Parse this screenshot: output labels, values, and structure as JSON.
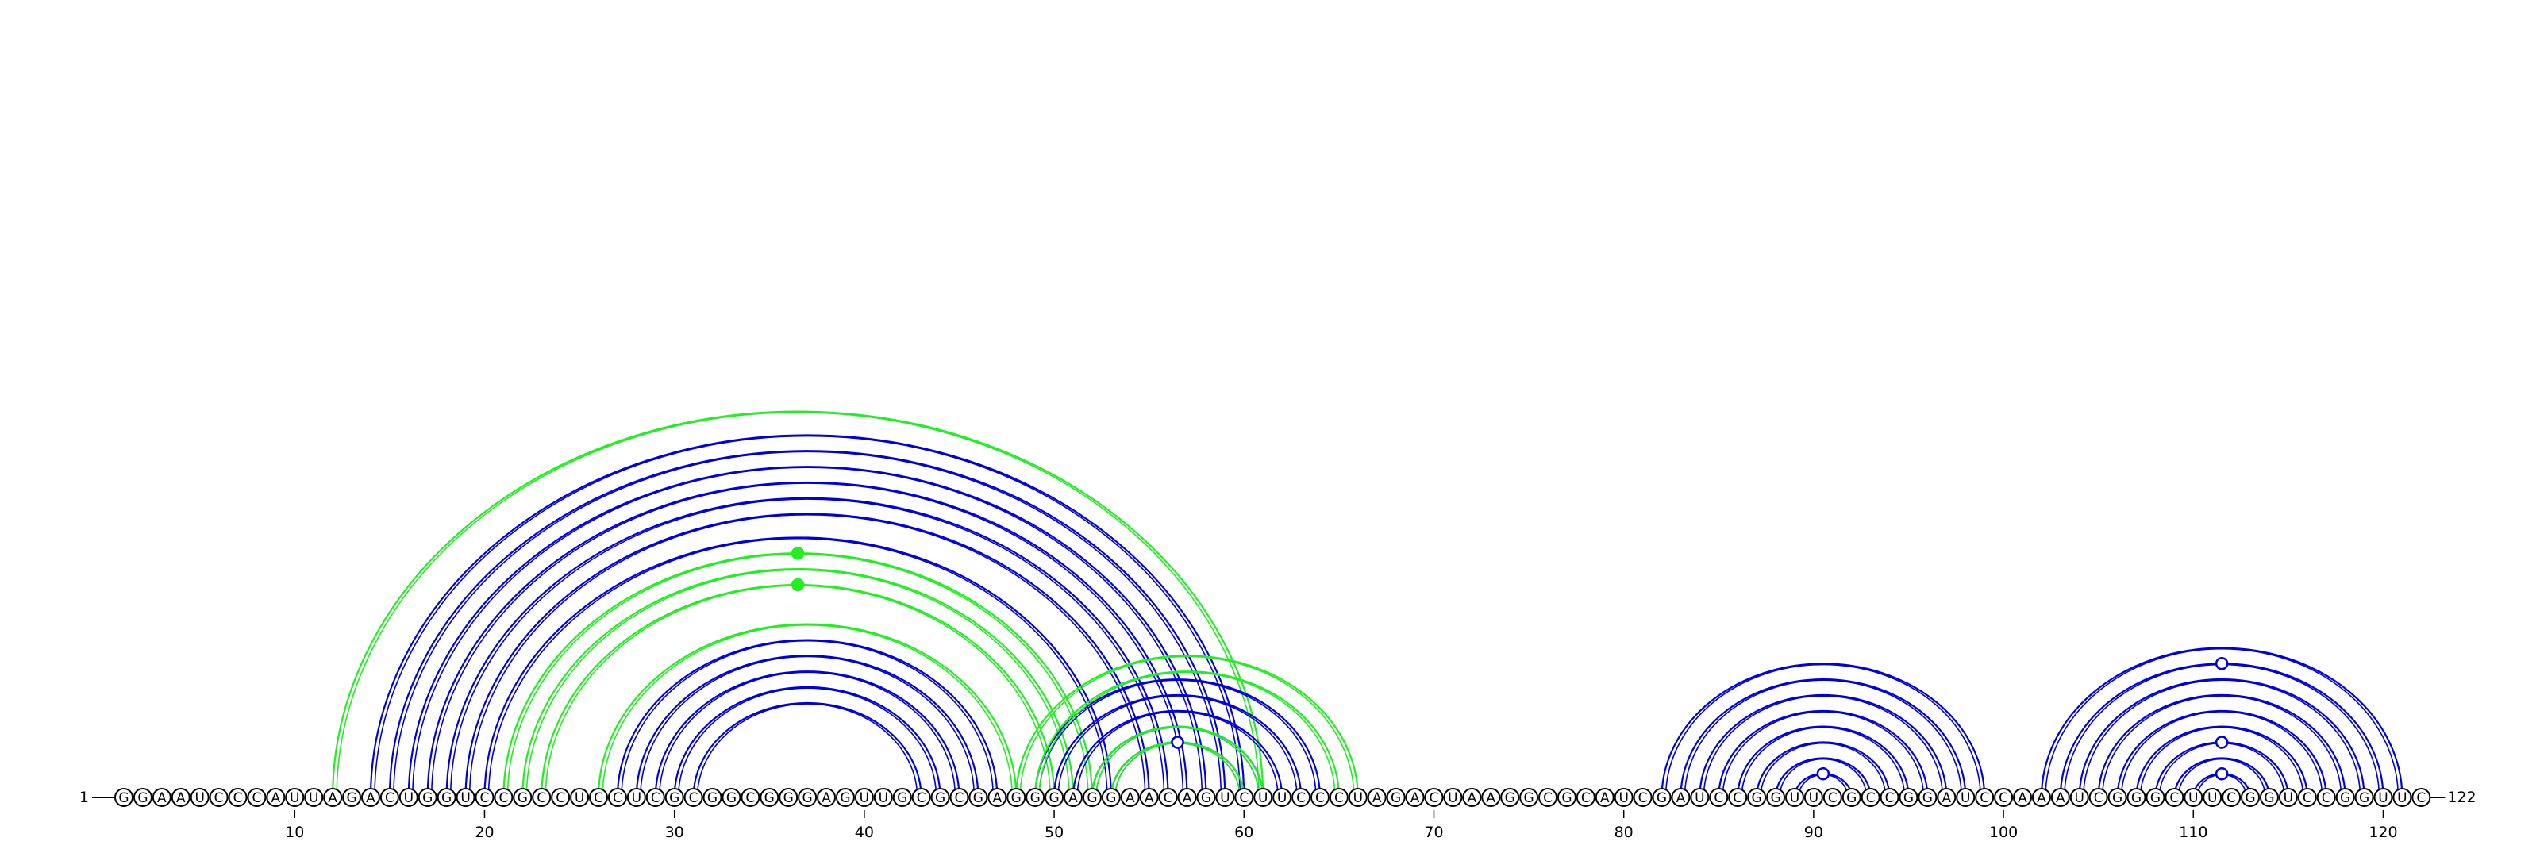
{
  "diagram": {
    "type": "rna-arc-diagram",
    "sequence": "GGAAUCCCAUUAGACUGGUCCGCCUCCUCGCGGCGGGAGUUGCGCGAGGGAGGAACAGUCUUCCCUAGACUAAGGCGCAUCGAUCCGGUUCGCCGGAUCCAAAUCGGGCUUCGGUCCGGUUC",
    "length": 122,
    "start_label": "1",
    "end_label": "122",
    "ticks": [
      10,
      20,
      30,
      40,
      50,
      60,
      70,
      80,
      90,
      100,
      110,
      120
    ],
    "colors": {
      "blue": "#0000dd",
      "green": "#22ee22",
      "nucleotide_outline": "#000000"
    },
    "arc_groups": [
      {
        "color": "blue",
        "arcs": [
          [
            14,
            60
          ],
          [
            15,
            59
          ],
          [
            16,
            58
          ],
          [
            17,
            57
          ],
          [
            18,
            56
          ],
          [
            19,
            55
          ]
        ]
      },
      {
        "color": "blue",
        "arcs": [
          [
            20,
            53
          ]
        ]
      },
      {
        "color": "green",
        "arcs": [
          [
            12,
            61
          ]
        ]
      },
      {
        "color": "green",
        "arcs": [
          [
            21,
            52
          ],
          [
            22,
            51
          ],
          [
            23,
            50
          ]
        ]
      },
      {
        "color": "blue",
        "arcs": [
          [
            27,
            47
          ],
          [
            28,
            46
          ],
          [
            29,
            45
          ],
          [
            30,
            44
          ],
          [
            31,
            43
          ]
        ]
      },
      {
        "color": "green",
        "arcs": [
          [
            26,
            48
          ]
        ]
      },
      {
        "color": "blue",
        "arcs": [
          [
            49,
            64
          ],
          [
            50,
            63
          ],
          [
            51,
            62
          ],
          [
            52,
            61
          ],
          [
            53,
            60
          ]
        ]
      },
      {
        "color": "green",
        "arcs": [
          [
            48,
            66
          ],
          [
            49,
            65
          ],
          [
            52,
            61
          ],
          [
            53,
            60
          ]
        ]
      },
      {
        "color": "blue",
        "arcs": [
          [
            82,
            99
          ],
          [
            83,
            98
          ],
          [
            84,
            97
          ],
          [
            85,
            96
          ],
          [
            86,
            95
          ],
          [
            87,
            94
          ],
          [
            88,
            93
          ],
          [
            89,
            92
          ]
        ]
      },
      {
        "color": "blue",
        "arcs": [
          [
            102,
            121
          ],
          [
            103,
            120
          ],
          [
            104,
            119
          ],
          [
            105,
            118
          ],
          [
            106,
            117
          ],
          [
            107,
            116
          ],
          [
            108,
            115
          ],
          [
            109,
            114
          ],
          [
            110,
            113
          ]
        ]
      }
    ],
    "markers": [
      {
        "color": "green",
        "filled": true,
        "arc": [
          21,
          52
        ]
      },
      {
        "color": "green",
        "filled": true,
        "arc": [
          23,
          50
        ]
      },
      {
        "color": "blue",
        "filled": false,
        "arc": [
          53,
          60
        ]
      },
      {
        "color": "blue",
        "filled": false,
        "arc": [
          89,
          92
        ]
      },
      {
        "color": "blue",
        "filled": false,
        "arc": [
          103,
          120
        ]
      },
      {
        "color": "blue",
        "filled": false,
        "arc": [
          108,
          115
        ]
      },
      {
        "color": "blue",
        "filled": false,
        "arc": [
          110,
          113
        ]
      }
    ]
  }
}
